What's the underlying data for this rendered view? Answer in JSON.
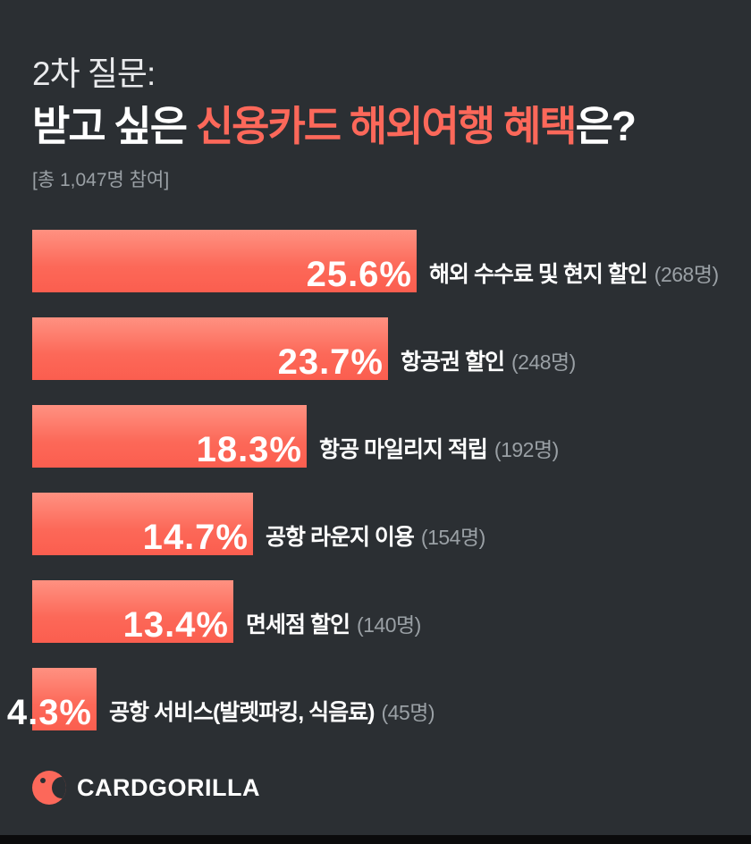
{
  "header": {
    "line1": "2차 질문:",
    "line2_prefix": "받고 싶은 ",
    "line2_highlight": "신용카드 해외여행 혜택",
    "line2_suffix": "은?",
    "participants": "[총 1,047명 참여]"
  },
  "chart_data": {
    "type": "bar",
    "orientation": "horizontal",
    "title": "받고 싶은 신용카드 해외여행 혜택은?",
    "subtitle": "총 1,047명 참여",
    "categories": [
      "해외 수수료 및 현지 할인",
      "항공권 할인",
      "항공 마일리지 적립",
      "공항 라운지 이용",
      "면세점 할인",
      "공항 서비스(발렛파킹, 식음료)"
    ],
    "values": [
      25.6,
      23.7,
      18.3,
      14.7,
      13.4,
      4.3
    ],
    "counts": [
      268,
      248,
      192,
      154,
      140,
      45
    ],
    "unit": "%",
    "total_participants": 1047,
    "xlim": [
      0,
      25.6
    ],
    "grid": false,
    "legend": false
  },
  "bars": [
    {
      "percent": "25.6%",
      "label": "해외 수수료 및 현지 할인",
      "count": "(268명)"
    },
    {
      "percent": "23.7%",
      "label": "항공권 할인",
      "count": "(248명)"
    },
    {
      "percent": "18.3%",
      "label": "항공 마일리지 적립",
      "count": "(192명)"
    },
    {
      "percent": "14.7%",
      "label": "공항 라운지 이용",
      "count": "(154명)"
    },
    {
      "percent": "13.4%",
      "label": "면세점 할인",
      "count": "(140명)"
    },
    {
      "percent": "4.3%",
      "label": "공항 서비스(발렛파킹, 식음료)",
      "count": "(45명)"
    }
  ],
  "footer": {
    "brand": "CARDGORILLA"
  },
  "colors": {
    "background": "#2b2f33",
    "accent": "#fc685a",
    "bar_gradient_top": "#ff9181",
    "bar_gradient_bottom": "#fb5e4f",
    "muted_text": "#9aa0a5",
    "text": "#ffffff"
  }
}
